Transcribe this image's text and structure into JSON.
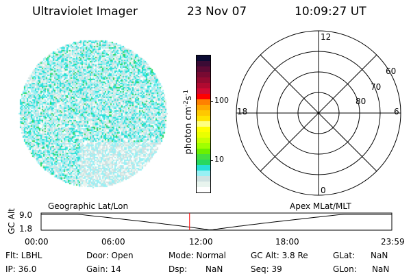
{
  "header": {
    "instrument": "Ultraviolet Imager",
    "date": "23 Nov 07",
    "time": "10:09:27 UT"
  },
  "colorbar": {
    "label": "photon cm",
    "exp1": "-2",
    "s": "s",
    "exp2": "-1",
    "ticks": [
      "100",
      "10"
    ],
    "colors": [
      "#0b0b33",
      "#3b0b35",
      "#5c0a35",
      "#780a32",
      "#930a30",
      "#b00a30",
      "#d20a32",
      "#ff0000",
      "#ff8000",
      "#ffa800",
      "#ffc800",
      "#ffe400",
      "#ffff80",
      "#ffff00",
      "#eaff00",
      "#c8ff00",
      "#a0ff00",
      "#6cf000",
      "#44e040",
      "#28d860",
      "#28e0d8",
      "#98f0f4",
      "#d0e2e2",
      "#e8f4ee",
      "#ffffff"
    ]
  },
  "polar": {
    "labels": {
      "top": "12",
      "bottom": "0",
      "left": "18",
      "right": "6"
    },
    "rings": [
      "60",
      "70",
      "80"
    ]
  },
  "timeline": {
    "left_label": "Geographic Lat/Lon",
    "right_label": "Apex MLat/MLT",
    "ylabel": "GC Alt",
    "yticks": [
      "9.0",
      "1.8"
    ],
    "xticks": [
      "00:00",
      "06:00",
      "12:00",
      "18:00",
      "23:59"
    ],
    "current_time_hour": 10.16,
    "marker_color": "#ff0000"
  },
  "status": {
    "flt": "Flt: LBHL",
    "ip": "IP: 36.0",
    "door": "Door: Open",
    "gain": "Gain: 14",
    "mode": "Mode: Normal",
    "dsp_label": "Dsp:",
    "dsp_value": "NaN",
    "gcalt": "GC Alt: 3.8 Re",
    "seq": "Seq: 39",
    "glat_label": "GLat:",
    "glat_value": "NaN",
    "glon_label": "GLon:",
    "glon_value": "NaN"
  }
}
